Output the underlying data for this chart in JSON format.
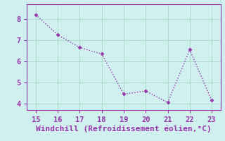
{
  "x": [
    15,
    16,
    17,
    18,
    19,
    20,
    21,
    22,
    23
  ],
  "y": [
    8.2,
    7.25,
    6.65,
    6.35,
    4.45,
    4.6,
    4.05,
    6.55,
    4.15
  ],
  "line_color": "#9933aa",
  "marker": "D",
  "marker_size": 2.5,
  "background_color": "#cff0ee",
  "grid_color": "#aaddcc",
  "xlabel": "Windchill (Refroidissement éolien,°C)",
  "xlabel_color": "#9933aa",
  "tick_color": "#9933aa",
  "spine_color": "#9933aa",
  "xlim": [
    14.6,
    23.4
  ],
  "ylim": [
    3.7,
    8.7
  ],
  "yticks": [
    4,
    5,
    6,
    7,
    8
  ],
  "xticks": [
    15,
    16,
    17,
    18,
    19,
    20,
    21,
    22,
    23
  ],
  "tick_fontsize": 7.5,
  "xlabel_fontsize": 8
}
